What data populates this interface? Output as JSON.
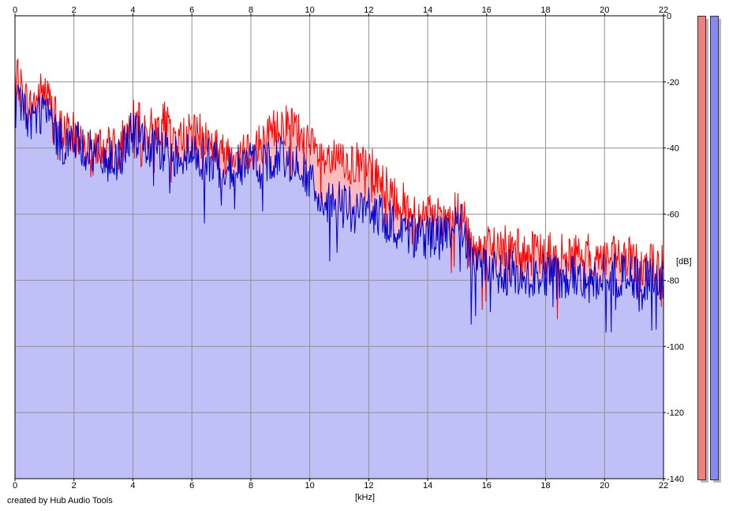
{
  "chart_data": {
    "type": "area",
    "xlabel": "[kHz]",
    "ylabel": "[dB]",
    "xlim": [
      0,
      22
    ],
    "ylim": [
      -140,
      0
    ],
    "x_ticks": [
      "0",
      "2",
      "4",
      "6",
      "8",
      "10",
      "12",
      "14",
      "16",
      "18",
      "20",
      "22"
    ],
    "y_ticks": [
      "0",
      "-20",
      "-40",
      "-60",
      "-80",
      "-100",
      "-120",
      "-140"
    ],
    "grid": true,
    "colors": {
      "red_line": "#ff0000",
      "blue_line": "#0000cc",
      "red_fill": "#ffbbbb",
      "blue_fill": "#c0c0f8",
      "grid": "#909090"
    },
    "series": [
      {
        "color": "red",
        "x": [
          0,
          0.5,
          1,
          1.5,
          2,
          2.5,
          3,
          3.5,
          4,
          4.5,
          5,
          5.5,
          6,
          6.5,
          7,
          7.5,
          8,
          8.5,
          9,
          9.5,
          10,
          10.5,
          11,
          11.5,
          12,
          12.5,
          13,
          13.5,
          14,
          14.5,
          15,
          15.2,
          15.5,
          16,
          16.5,
          17,
          17.5,
          18,
          18.5,
          19,
          19.5,
          20,
          20.5,
          21,
          21.5,
          22
        ],
        "y": [
          -18,
          -28,
          -22,
          -34,
          -36,
          -38,
          -40,
          -40,
          -32,
          -35,
          -32,
          -38,
          -36,
          -37,
          -42,
          -40,
          -40,
          -38,
          -32,
          -34,
          -40,
          -44,
          -44,
          -45,
          -46,
          -50,
          -56,
          -60,
          -61,
          -62,
          -60,
          -61,
          -70,
          -70,
          -70,
          -71,
          -72,
          -72,
          -73,
          -72,
          -73,
          -73,
          -74,
          -74,
          -75,
          -76
        ]
      },
      {
        "color": "blue",
        "x": [
          0,
          0.5,
          1,
          1.5,
          2,
          2.5,
          3,
          3.5,
          4,
          4.5,
          5,
          5.5,
          6,
          6.5,
          7,
          7.5,
          8,
          8.5,
          9,
          9.5,
          10,
          10.5,
          11,
          11.5,
          12,
          12.5,
          13,
          13.5,
          14,
          14.5,
          15,
          15.2,
          15.5,
          16,
          16.5,
          17,
          17.5,
          18,
          18.5,
          19,
          19.5,
          20,
          20.5,
          21,
          21.5,
          22
        ],
        "y": [
          -22,
          -32,
          -28,
          -38,
          -38,
          -41,
          -44,
          -43,
          -35,
          -40,
          -41,
          -42,
          -42,
          -43,
          -46,
          -46,
          -44,
          -44,
          -43,
          -44,
          -50,
          -58,
          -56,
          -59,
          -58,
          -62,
          -64,
          -66,
          -67,
          -67,
          -62,
          -64,
          -76,
          -77,
          -77,
          -78,
          -79,
          -79,
          -79,
          -79,
          -79,
          -79,
          -79,
          -79,
          -80,
          -80
        ]
      }
    ]
  },
  "credit": "created by Hub Audio Tools"
}
